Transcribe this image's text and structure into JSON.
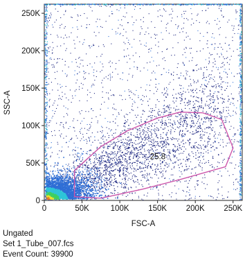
{
  "chart_data": {
    "type": "scatter",
    "title": "",
    "xlabel": "FSC-A",
    "ylabel": "SSC-A",
    "xlim": [
      0,
      262144
    ],
    "ylim": [
      0,
      262144
    ],
    "x_ticks": [
      0,
      50000,
      100000,
      150000,
      200000,
      250000
    ],
    "x_tick_labels": [
      "0",
      "50K",
      "100K",
      "150K",
      "200K",
      "250K"
    ],
    "y_ticks": [
      0,
      50000,
      100000,
      150000,
      200000,
      250000
    ],
    "y_tick_labels": [
      "0",
      "50K",
      "100K",
      "150K",
      "200K",
      "250K"
    ],
    "grid": false,
    "density_colormap": [
      "#1a237e",
      "#2f6fd6",
      "#2ec4d8",
      "#3ecf62",
      "#e8e233",
      "#f07b1c",
      "#e01b12"
    ],
    "gate": {
      "color": "#cc55aa",
      "percentage_label": "25.8",
      "label_position": [
        140000,
        55000
      ],
      "vertices": [
        [
          40000,
          5000
        ],
        [
          40000,
          40000
        ],
        [
          75000,
          72000
        ],
        [
          110000,
          93000
        ],
        [
          150000,
          110000
        ],
        [
          180000,
          118000
        ],
        [
          210000,
          117000
        ],
        [
          235000,
          108000
        ],
        [
          250000,
          70000
        ],
        [
          240000,
          45000
        ],
        [
          180000,
          28000
        ],
        [
          130000,
          15000
        ],
        [
          75000,
          3000
        ]
      ]
    },
    "population": {
      "event_count": 39900,
      "core_x": [
        3000,
        40000
      ],
      "core_y": [
        2000,
        25000
      ],
      "edge_max": 262144
    }
  },
  "footer": {
    "gate_name": "Ungated",
    "file_name": "Set 1_Tube_007.fcs",
    "event_count_text": "Event Count: 39900"
  }
}
